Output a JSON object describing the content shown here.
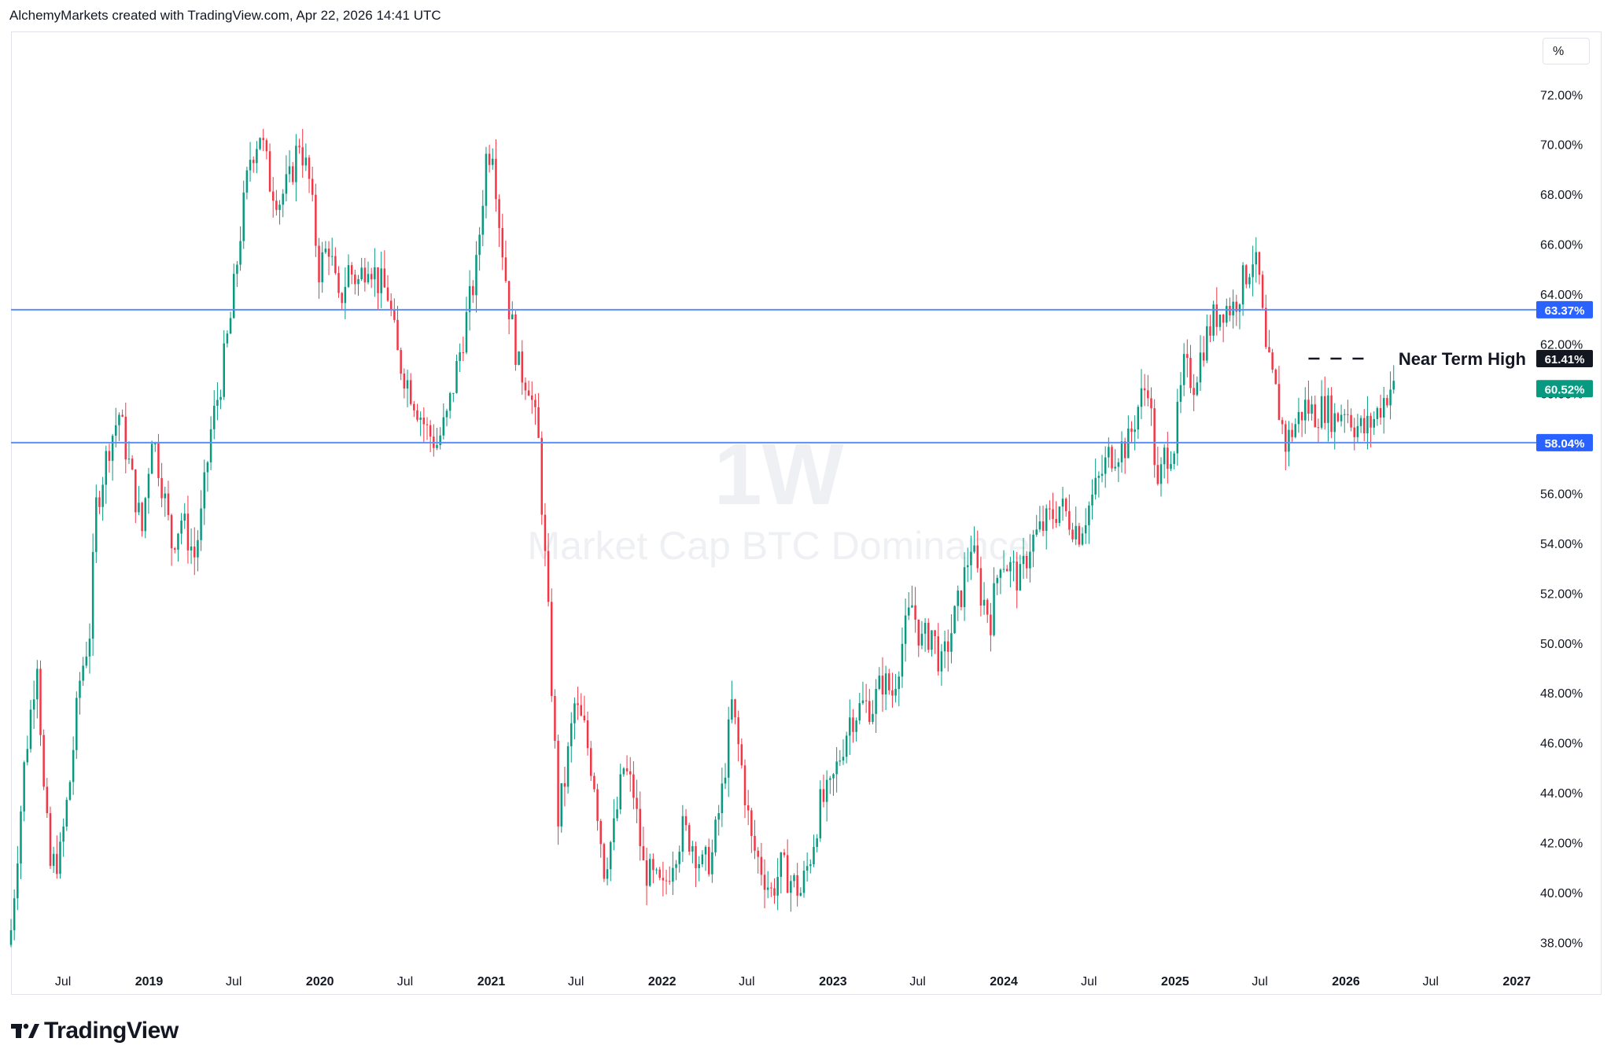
{
  "header": {
    "text": "AlchemyMarkets created with TradingView.com, Apr 22, 2026 14:41 UTC"
  },
  "footer": {
    "logo_text": "TradingView"
  },
  "toolbar": {
    "scale_button": "%"
  },
  "watermark": {
    "interval": "1W",
    "title": "Market Cap BTC Dominance"
  },
  "annotation": {
    "text": "Near Term High"
  },
  "colors": {
    "up": "#089981",
    "down": "#f23645",
    "hline": "#5b8ff9",
    "hline_label_bg": "#2962ff",
    "current_bg": "#089981",
    "black_bg": "#131722"
  },
  "chart_data": {
    "type": "candlestick",
    "title": "Market Cap BTC Dominance",
    "interval": "1W",
    "y_unit": "%",
    "ylim": [
      37,
      74.5
    ],
    "y_ticks": [
      "72.00%",
      "70.00%",
      "68.00%",
      "66.00%",
      "64.00%",
      "62.00%",
      "60.00%",
      "58.00%",
      "56.00%",
      "54.00%",
      "52.00%",
      "50.00%",
      "48.00%",
      "46.00%",
      "44.00%",
      "42.00%",
      "40.00%",
      "38.00%"
    ],
    "x_range": [
      "2018-03-12",
      "2027-02-15"
    ],
    "x_ticks": [
      {
        "label": "Jul",
        "date": "2018-07-01",
        "bold": false
      },
      {
        "label": "2019",
        "date": "2019-01-01",
        "bold": true
      },
      {
        "label": "Jul",
        "date": "2019-07-01",
        "bold": false
      },
      {
        "label": "2020",
        "date": "2020-01-01",
        "bold": true
      },
      {
        "label": "Jul",
        "date": "2020-07-01",
        "bold": false
      },
      {
        "label": "2021",
        "date": "2021-01-01",
        "bold": true
      },
      {
        "label": "Jul",
        "date": "2021-07-01",
        "bold": false
      },
      {
        "label": "2022",
        "date": "2022-01-01",
        "bold": true
      },
      {
        "label": "Jul",
        "date": "2022-07-01",
        "bold": false
      },
      {
        "label": "2023",
        "date": "2023-01-01",
        "bold": true
      },
      {
        "label": "Jul",
        "date": "2023-07-01",
        "bold": false
      },
      {
        "label": "2024",
        "date": "2024-01-01",
        "bold": true
      },
      {
        "label": "Jul",
        "date": "2024-07-01",
        "bold": false
      },
      {
        "label": "2025",
        "date": "2025-01-01",
        "bold": true
      },
      {
        "label": "Jul",
        "date": "2025-07-01",
        "bold": false
      },
      {
        "label": "2026",
        "date": "2026-01-01",
        "bold": true
      },
      {
        "label": "Jul",
        "date": "2026-07-01",
        "bold": false
      },
      {
        "label": "2027",
        "date": "2027-01-01",
        "bold": true
      }
    ],
    "horizontal_lines": [
      {
        "value": 63.37,
        "label": "63.37%"
      },
      {
        "value": 58.04,
        "label": "58.04%"
      }
    ],
    "near_term_high": {
      "value": 61.41,
      "label": "61.41%",
      "from": "2025-10-13",
      "to": "2026-02-09"
    },
    "last_price": {
      "value": 60.52,
      "label": "60.52%"
    },
    "close_series": [
      [
        "2018-03-12",
        38.5
      ],
      [
        "2018-04-09",
        45.0
      ],
      [
        "2018-05-07",
        49.5
      ],
      [
        "2018-05-21",
        44.0
      ],
      [
        "2018-06-04",
        41.0
      ],
      [
        "2018-06-25",
        41.5
      ],
      [
        "2018-07-16",
        44.5
      ],
      [
        "2018-08-06",
        48.5
      ],
      [
        "2018-08-27",
        50.5
      ],
      [
        "2018-09-10",
        55.5
      ],
      [
        "2018-10-08",
        58.0
      ],
      [
        "2018-10-29",
        59.2
      ],
      [
        "2018-11-26",
        56.5
      ],
      [
        "2018-12-17",
        54.5
      ],
      [
        "2019-01-07",
        58.5
      ],
      [
        "2019-01-28",
        56.5
      ],
      [
        "2019-02-18",
        54.0
      ],
      [
        "2019-03-11",
        55.0
      ],
      [
        "2019-04-08",
        53.5
      ],
      [
        "2019-04-22",
        55.0
      ],
      [
        "2019-05-13",
        58.5
      ],
      [
        "2019-06-03",
        60.5
      ],
      [
        "2019-06-24",
        63.0
      ],
      [
        "2019-07-15",
        66.5
      ],
      [
        "2019-08-05",
        69.5
      ],
      [
        "2019-08-26",
        70.5
      ],
      [
        "2019-09-16",
        68.5
      ],
      [
        "2019-10-07",
        67.8
      ],
      [
        "2019-10-28",
        68.5
      ],
      [
        "2019-11-18",
        70.2
      ],
      [
        "2019-12-09",
        68.5
      ],
      [
        "2019-12-30",
        65.0
      ],
      [
        "2020-01-20",
        66.0
      ],
      [
        "2020-02-10",
        63.5
      ],
      [
        "2020-03-02",
        65.0
      ],
      [
        "2020-03-23",
        64.5
      ],
      [
        "2020-04-13",
        65.5
      ],
      [
        "2020-05-04",
        64.5
      ],
      [
        "2020-05-25",
        64.0
      ],
      [
        "2020-06-15",
        61.5
      ],
      [
        "2020-07-06",
        60.5
      ],
      [
        "2020-07-27",
        59.5
      ],
      [
        "2020-08-17",
        58.5
      ],
      [
        "2020-09-07",
        58.0
      ],
      [
        "2020-09-28",
        59.0
      ],
      [
        "2020-10-19",
        61.0
      ],
      [
        "2020-11-09",
        63.0
      ],
      [
        "2020-11-30",
        65.0
      ],
      [
        "2020-12-21",
        69.5
      ],
      [
        "2021-01-04",
        70.0
      ],
      [
        "2021-01-18",
        67.0
      ],
      [
        "2021-02-08",
        63.5
      ],
      [
        "2021-03-01",
        61.0
      ],
      [
        "2021-03-22",
        60.5
      ],
      [
        "2021-04-12",
        58.0
      ],
      [
        "2021-05-03",
        51.0
      ],
      [
        "2021-05-24",
        43.0
      ],
      [
        "2021-06-07",
        44.5
      ],
      [
        "2021-06-28",
        47.5
      ],
      [
        "2021-07-19",
        46.5
      ],
      [
        "2021-08-09",
        44.5
      ],
      [
        "2021-08-30",
        41.0
      ],
      [
        "2021-09-20",
        42.5
      ],
      [
        "2021-10-11",
        45.0
      ],
      [
        "2021-11-01",
        44.0
      ],
      [
        "2021-11-22",
        41.0
      ],
      [
        "2021-12-13",
        40.5
      ],
      [
        "2022-01-03",
        40.0
      ],
      [
        "2022-01-24",
        41.5
      ],
      [
        "2022-02-14",
        42.5
      ],
      [
        "2022-03-07",
        42.0
      ],
      [
        "2022-03-28",
        41.0
      ],
      [
        "2022-04-18",
        41.5
      ],
      [
        "2022-05-09",
        44.0
      ],
      [
        "2022-05-30",
        47.5
      ],
      [
        "2022-06-20",
        45.0
      ],
      [
        "2022-07-11",
        42.0
      ],
      [
        "2022-08-01",
        41.0
      ],
      [
        "2022-08-22",
        40.0
      ],
      [
        "2022-09-12",
        41.0
      ],
      [
        "2022-10-03",
        40.5
      ],
      [
        "2022-10-24",
        40.0
      ],
      [
        "2022-11-14",
        41.5
      ],
      [
        "2022-12-05",
        43.5
      ],
      [
        "2022-12-26",
        44.0
      ],
      [
        "2023-01-16",
        45.5
      ],
      [
        "2023-02-06",
        47.0
      ],
      [
        "2023-03-06",
        47.5
      ],
      [
        "2023-03-27",
        47.5
      ],
      [
        "2023-04-17",
        48.5
      ],
      [
        "2023-05-08",
        48.0
      ],
      [
        "2023-05-29",
        50.0
      ],
      [
        "2023-06-19",
        51.5
      ],
      [
        "2023-07-10",
        50.0
      ],
      [
        "2023-07-31",
        50.5
      ],
      [
        "2023-08-21",
        49.0
      ],
      [
        "2023-09-11",
        50.5
      ],
      [
        "2023-10-02",
        52.0
      ],
      [
        "2023-10-23",
        54.0
      ],
      [
        "2023-11-13",
        52.0
      ],
      [
        "2023-12-04",
        51.0
      ],
      [
        "2023-12-25",
        53.5
      ],
      [
        "2024-01-15",
        53.0
      ],
      [
        "2024-02-05",
        52.5
      ],
      [
        "2024-02-26",
        54.0
      ],
      [
        "2024-03-18",
        54.5
      ],
      [
        "2024-04-08",
        55.0
      ],
      [
        "2024-04-29",
        55.5
      ],
      [
        "2024-05-20",
        55.0
      ],
      [
        "2024-06-10",
        54.5
      ],
      [
        "2024-07-01",
        55.5
      ],
      [
        "2024-07-22",
        56.5
      ],
      [
        "2024-08-12",
        57.5
      ],
      [
        "2024-09-02",
        57.8
      ],
      [
        "2024-09-23",
        58.0
      ],
      [
        "2024-10-14",
        59.5
      ],
      [
        "2024-11-04",
        60.5
      ],
      [
        "2024-11-25",
        56.0
      ],
      [
        "2024-12-09",
        57.5
      ],
      [
        "2024-12-30",
        58.0
      ],
      [
        "2025-01-20",
        61.0
      ],
      [
        "2025-02-10",
        60.5
      ],
      [
        "2025-03-03",
        62.0
      ],
      [
        "2025-03-24",
        63.0
      ],
      [
        "2025-04-14",
        63.5
      ],
      [
        "2025-05-05",
        63.5
      ],
      [
        "2025-05-26",
        64.5
      ],
      [
        "2025-06-16",
        65.5
      ],
      [
        "2025-06-30",
        64.5
      ],
      [
        "2025-07-14",
        61.5
      ],
      [
        "2025-08-04",
        60.0
      ],
      [
        "2025-08-25",
        58.0
      ],
      [
        "2025-09-15",
        58.8
      ],
      [
        "2025-10-06",
        59.5
      ],
      [
        "2025-10-27",
        59.2
      ],
      [
        "2025-11-17",
        59.5
      ],
      [
        "2025-12-08",
        59.0
      ],
      [
        "2025-12-29",
        59.5
      ],
      [
        "2026-01-19",
        58.8
      ],
      [
        "2026-02-09",
        58.5
      ],
      [
        "2026-03-02",
        59.0
      ],
      [
        "2026-03-23",
        59.8
      ],
      [
        "2026-04-13",
        60.52
      ]
    ]
  }
}
